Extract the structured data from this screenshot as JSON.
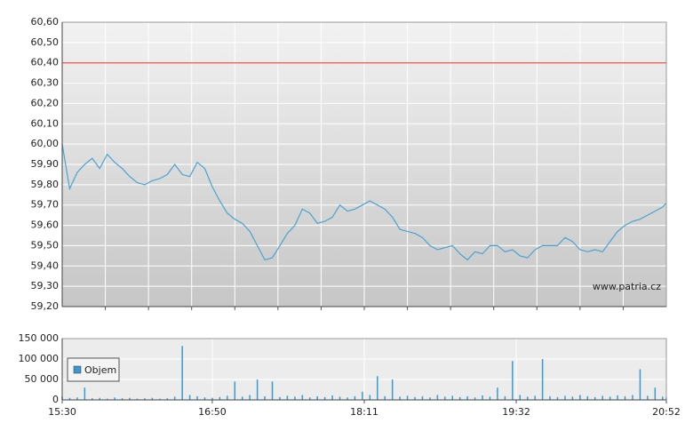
{
  "chart_data": [
    {
      "type": "line",
      "color": "#4aa3d0",
      "x": [
        930,
        934,
        938,
        942,
        946,
        950,
        954,
        958,
        962,
        966,
        970,
        974,
        978,
        982,
        986,
        990,
        994,
        998,
        1002,
        1006,
        1010,
        1014,
        1018,
        1022,
        1026,
        1030,
        1034,
        1038,
        1042,
        1046,
        1050,
        1054,
        1058,
        1062,
        1066,
        1070,
        1074,
        1078,
        1082,
        1086,
        1090,
        1094,
        1098,
        1102,
        1106,
        1110,
        1114,
        1118,
        1122,
        1126,
        1130,
        1134,
        1138,
        1142,
        1146,
        1150,
        1154,
        1158,
        1162,
        1166,
        1170,
        1174,
        1178,
        1182,
        1186,
        1190,
        1194,
        1198,
        1202,
        1206,
        1210,
        1214,
        1218,
        1222,
        1226,
        1230,
        1234,
        1238,
        1242,
        1246,
        1250,
        1252
      ],
      "values": [
        60.0,
        59.78,
        59.86,
        59.9,
        59.93,
        59.88,
        59.95,
        59.91,
        59.88,
        59.84,
        59.81,
        59.8,
        59.82,
        59.83,
        59.85,
        59.9,
        59.85,
        59.84,
        59.91,
        59.88,
        59.79,
        59.72,
        59.66,
        59.63,
        59.61,
        59.57,
        59.5,
        59.43,
        59.44,
        59.5,
        59.56,
        59.6,
        59.68,
        59.66,
        59.61,
        59.62,
        59.64,
        59.7,
        59.67,
        59.68,
        59.7,
        59.72,
        59.7,
        59.68,
        59.64,
        59.58,
        59.57,
        59.56,
        59.54,
        59.5,
        59.48,
        59.49,
        59.5,
        59.46,
        59.43,
        59.47,
        59.46,
        59.5,
        59.5,
        59.47,
        59.48,
        59.45,
        59.44,
        59.48,
        59.5,
        59.5,
        59.5,
        59.54,
        59.52,
        59.48,
        59.47,
        59.48,
        59.47,
        59.52,
        59.57,
        59.6,
        59.62,
        59.63,
        59.65,
        59.67,
        59.69,
        59.71
      ],
      "xlim": [
        930,
        1252
      ],
      "xgrid": [
        953,
        976,
        999,
        1022,
        1045,
        1068,
        1091,
        1114,
        1137,
        1160,
        1183,
        1206,
        1229
      ],
      "ylim": [
        59.2,
        60.6
      ],
      "yticks": [
        {
          "value": 59.2,
          "label": "59,20"
        },
        {
          "value": 59.3,
          "label": "59,30"
        },
        {
          "value": 59.4,
          "label": "59,40"
        },
        {
          "value": 59.5,
          "label": "59,50"
        },
        {
          "value": 59.6,
          "label": "59,60"
        },
        {
          "value": 59.7,
          "label": "59,70"
        },
        {
          "value": 59.8,
          "label": "59,80"
        },
        {
          "value": 59.9,
          "label": "59,90"
        },
        {
          "value": 60.0,
          "label": "60,00"
        },
        {
          "value": 60.1,
          "label": "60,10"
        },
        {
          "value": 60.2,
          "label": "60,20"
        },
        {
          "value": 60.3,
          "label": "60,30"
        },
        {
          "value": 60.4,
          "label": "60,40"
        },
        {
          "value": 60.5,
          "label": "60,50"
        },
        {
          "value": 60.6,
          "label": "60,60"
        }
      ],
      "hline": {
        "value": 60.4,
        "color": "#e8504a"
      },
      "watermark": "www.patria.cz",
      "grid": true
    },
    {
      "type": "bar",
      "x": [
        930,
        934,
        938,
        942,
        946,
        950,
        954,
        958,
        962,
        966,
        970,
        974,
        978,
        982,
        986,
        990,
        994,
        998,
        1002,
        1006,
        1010,
        1014,
        1018,
        1022,
        1026,
        1030,
        1034,
        1038,
        1042,
        1046,
        1050,
        1054,
        1058,
        1062,
        1066,
        1070,
        1074,
        1078,
        1082,
        1086,
        1090,
        1094,
        1098,
        1102,
        1106,
        1110,
        1114,
        1118,
        1122,
        1126,
        1130,
        1134,
        1138,
        1142,
        1146,
        1150,
        1154,
        1158,
        1162,
        1166,
        1170,
        1174,
        1178,
        1182,
        1186,
        1190,
        1194,
        1198,
        1202,
        1206,
        1210,
        1214,
        1218,
        1222,
        1226,
        1230,
        1234,
        1238,
        1242,
        1246,
        1250,
        1252
      ],
      "series": [
        {
          "name": "Objem",
          "color": "#3a9ad0",
          "values": [
            8000,
            5000,
            6000,
            30000,
            4000,
            5000,
            3000,
            6000,
            4000,
            5000,
            3000,
            4000,
            5000,
            3000,
            4000,
            8000,
            132000,
            12000,
            9000,
            6000,
            5000,
            7000,
            10000,
            45000,
            8000,
            12000,
            50000,
            9000,
            45000,
            7000,
            10000,
            8000,
            12000,
            6000,
            9000,
            7000,
            11000,
            8000,
            6000,
            9000,
            20000,
            12000,
            58000,
            9000,
            50000,
            8000,
            10000,
            7000,
            9000,
            6000,
            12000,
            8000,
            10000,
            7000,
            9000,
            6000,
            11000,
            8000,
            30000,
            9000,
            95000,
            12000,
            8000,
            10000,
            100000,
            9000,
            7000,
            10000,
            8000,
            12000,
            9000,
            7000,
            10000,
            8000,
            11000,
            9000,
            12000,
            75000,
            10000,
            30000,
            8000,
            6000
          ]
        }
      ],
      "xlim": [
        930,
        1252
      ],
      "xticks": [
        {
          "value": 930,
          "label": "15:30"
        },
        {
          "value": 1010,
          "label": "16:50"
        },
        {
          "value": 1091,
          "label": "18:11"
        },
        {
          "value": 1172,
          "label": "19:32"
        },
        {
          "value": 1252,
          "label": "20:52"
        }
      ],
      "ylim": [
        0,
        150000
      ],
      "yticks": [
        0,
        {
          "value": 50000,
          "label": "50 000"
        },
        {
          "value": 100000,
          "label": "100 000"
        },
        {
          "value": 150000,
          "label": "150 000"
        }
      ],
      "grid": true
    }
  ]
}
